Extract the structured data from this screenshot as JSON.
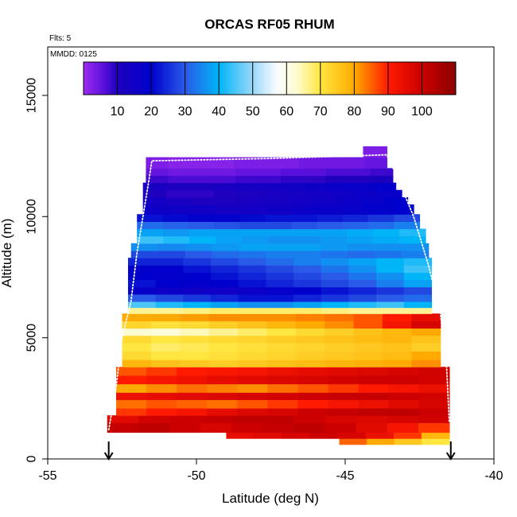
{
  "chart_data": {
    "type": "heatmap",
    "title": "ORCAS RF05 RHUM",
    "annotations": {
      "flights": "Flts: 5",
      "date": "MMDD: 0125"
    },
    "xlabel": "Latitude (deg N)",
    "ylabel": "Altitude (m)",
    "xlim": [
      -55,
      -40
    ],
    "ylim": [
      0,
      17000
    ],
    "xticks": [
      -55,
      -50,
      -45,
      -40
    ],
    "yticks": [
      0,
      5000,
      10000,
      15000
    ],
    "colorbar": {
      "range": [
        0,
        110
      ],
      "ticks": [
        10,
        20,
        30,
        40,
        50,
        60,
        70,
        80,
        90,
        100
      ],
      "colors": [
        {
          "v": 0,
          "c": "#9d2cf0"
        },
        {
          "v": 6,
          "c": "#5a10dc"
        },
        {
          "v": 10,
          "c": "#1f00be"
        },
        {
          "v": 20,
          "c": "#0000cc"
        },
        {
          "v": 30,
          "c": "#2a5ae8"
        },
        {
          "v": 40,
          "c": "#00b4f8"
        },
        {
          "v": 50,
          "c": "#99d8f8"
        },
        {
          "v": 57,
          "c": "#f8fcff"
        },
        {
          "v": 63,
          "c": "#fffbd0"
        },
        {
          "v": 70,
          "c": "#ffe640"
        },
        {
          "v": 80,
          "c": "#ffaa00"
        },
        {
          "v": 90,
          "c": "#ff1a00"
        },
        {
          "v": 100,
          "c": "#cc0000"
        },
        {
          "v": 110,
          "c": "#8b0000"
        }
      ]
    },
    "rows": [
      {
        "alt0": 600,
        "alt1": 900,
        "lat0": -45.2,
        "lat1": -41.5,
        "rh": [
          85,
          80,
          75,
          70
        ]
      },
      {
        "alt0": 850,
        "alt1": 1150,
        "lat0": -49,
        "lat1": -41.5,
        "rh": [
          95,
          96,
          98,
          100,
          98,
          94,
          88,
          78
        ]
      },
      {
        "alt0": 1100,
        "alt1": 1500,
        "lat0": -53,
        "lat1": -41.5,
        "rh": [
          101,
          102,
          100,
          98,
          100,
          101,
          102,
          100,
          96,
          92,
          88
        ]
      },
      {
        "alt0": 1500,
        "alt1": 1800,
        "lat0": -53,
        "lat1": -41.5,
        "rh": [
          96,
          99,
          100,
          101,
          102,
          102,
          100,
          98,
          97,
          98,
          99
        ]
      },
      {
        "alt0": 1800,
        "alt1": 2100,
        "lat0": -52.7,
        "lat1": -41.5,
        "rh": [
          88,
          90,
          92,
          95,
          97,
          98,
          100,
          101,
          102,
          102,
          100
        ]
      },
      {
        "alt0": 2100,
        "alt1": 2450,
        "lat0": -52.7,
        "lat1": -41.5,
        "rh": [
          84,
          86,
          85,
          84,
          86,
          88,
          90,
          92,
          94,
          96,
          98
        ]
      },
      {
        "alt0": 2450,
        "alt1": 2750,
        "lat0": -52.7,
        "lat1": -41.5,
        "rh": [
          94,
          95,
          96,
          97,
          98,
          99,
          100,
          101,
          101,
          100,
          99
        ]
      },
      {
        "alt0": 2750,
        "alt1": 3100,
        "lat0": -52.7,
        "lat1": -41.5,
        "rh": [
          80,
          82,
          84,
          83,
          82,
          84,
          86,
          88,
          90,
          92,
          94
        ]
      },
      {
        "alt0": 3100,
        "alt1": 3450,
        "lat0": -52.7,
        "lat1": -41.5,
        "rh": [
          90,
          92,
          93,
          95,
          96,
          97,
          98,
          99,
          100,
          100,
          99
        ]
      },
      {
        "alt0": 3450,
        "alt1": 3800,
        "lat0": -52.7,
        "lat1": -41.5,
        "rh": [
          86,
          88,
          90,
          91,
          92,
          94,
          95,
          96,
          97,
          98,
          99
        ]
      },
      {
        "alt0": 3800,
        "alt1": 4100,
        "lat0": -52.5,
        "lat1": -41.8,
        "rh": [
          78,
          76,
          75,
          74,
          75,
          76,
          77,
          78,
          79,
          80,
          82
        ]
      },
      {
        "alt0": 4100,
        "alt1": 4450,
        "lat0": -52.5,
        "lat1": -41.8,
        "rh": [
          72,
          70,
          70,
          71,
          72,
          73,
          74,
          75,
          76,
          77,
          80
        ]
      },
      {
        "alt0": 4450,
        "alt1": 4800,
        "lat0": -52.5,
        "lat1": -41.8,
        "rh": [
          70,
          68,
          69,
          70,
          71,
          72,
          73,
          74,
          75,
          76,
          74
        ]
      },
      {
        "alt0": 4800,
        "alt1": 5100,
        "lat0": -52.5,
        "lat1": -41.8,
        "rh": [
          72,
          70,
          71,
          72,
          73,
          74,
          75,
          76,
          77,
          78,
          76
        ]
      },
      {
        "alt0": 5100,
        "alt1": 5400,
        "lat0": -52.5,
        "lat1": -41.8,
        "rh": [
          63,
          62,
          64,
          66,
          68,
          70,
          72,
          74,
          76,
          78,
          80
        ]
      },
      {
        "alt0": 5400,
        "alt1": 5700,
        "lat0": -52.5,
        "lat1": -41.8,
        "rh": [
          73,
          71,
          72,
          74,
          76,
          78,
          80,
          82,
          86,
          92,
          98
        ]
      },
      {
        "alt0": 5700,
        "alt1": 6000,
        "lat0": -52.5,
        "lat1": -41.8,
        "rh": [
          80,
          80,
          81,
          82,
          82,
          82,
          83,
          84,
          86,
          90,
          95
        ]
      },
      {
        "alt0": 6000,
        "alt1": 6250,
        "lat0": -52.3,
        "lat1": -42.1,
        "rh": [
          66,
          66,
          67,
          68,
          68,
          68,
          68,
          67,
          66,
          66,
          66
        ]
      },
      {
        "alt0": 6250,
        "alt1": 6500,
        "lat0": -52.3,
        "lat1": -42.1,
        "rh": [
          45,
          42,
          40,
          38,
          36,
          36,
          38,
          40,
          42,
          44,
          40
        ]
      },
      {
        "alt0": 6500,
        "alt1": 6800,
        "lat0": -52.3,
        "lat1": -42.1,
        "rh": [
          30,
          28,
          26,
          24,
          22,
          22,
          24,
          26,
          28,
          30,
          32
        ]
      },
      {
        "alt0": 6800,
        "alt1": 7100,
        "lat0": -52.3,
        "lat1": -42.1,
        "rh": [
          18,
          16,
          15,
          15,
          16,
          18,
          20,
          22,
          24,
          26,
          28
        ]
      },
      {
        "alt0": 7100,
        "alt1": 7400,
        "lat0": -52.3,
        "lat1": -42.1,
        "rh": [
          22,
          20,
          19,
          20,
          22,
          24,
          26,
          28,
          30,
          34,
          38
        ]
      },
      {
        "alt0": 7400,
        "alt1": 7700,
        "lat0": -52.3,
        "lat1": -42.1,
        "rh": [
          20,
          19,
          20,
          22,
          24,
          26,
          28,
          30,
          33,
          36,
          40
        ]
      },
      {
        "alt0": 7700,
        "alt1": 8000,
        "lat0": -52.3,
        "lat1": -42.1,
        "rh": [
          19,
          20,
          22,
          24,
          26,
          28,
          30,
          33,
          36,
          40,
          44
        ]
      },
      {
        "alt0": 8000,
        "alt1": 8300,
        "lat0": -52.3,
        "lat1": -42.1,
        "rh": [
          24,
          24,
          26,
          28,
          30,
          32,
          34,
          36,
          38,
          40,
          42
        ]
      },
      {
        "alt0": 8300,
        "alt1": 8600,
        "lat0": -52.2,
        "lat1": -42.2,
        "rh": [
          28,
          28,
          30,
          32,
          33,
          34,
          34,
          33,
          32,
          33,
          34
        ]
      },
      {
        "alt0": 8600,
        "alt1": 8900,
        "lat0": -52.2,
        "lat1": -42.2,
        "rh": [
          36,
          35,
          36,
          37,
          38,
          38,
          38,
          37,
          36,
          36,
          36
        ]
      },
      {
        "alt0": 8900,
        "alt1": 9200,
        "lat0": -52.0,
        "lat1": -42.3,
        "rh": [
          44,
          42,
          40,
          38,
          37,
          36,
          36,
          37,
          38,
          39,
          40
        ]
      },
      {
        "alt0": 9200,
        "alt1": 9500,
        "lat0": -52.0,
        "lat1": -42.3,
        "rh": [
          38,
          37,
          38,
          38,
          38,
          38,
          38,
          38,
          39,
          40,
          42
        ]
      },
      {
        "alt0": 9500,
        "alt1": 9800,
        "lat0": -52.0,
        "lat1": -42.5,
        "rh": [
          32,
          31,
          30,
          29,
          28,
          28,
          29,
          30,
          31,
          32,
          34
        ]
      },
      {
        "alt0": 9800,
        "alt1": 10100,
        "lat0": -52.0,
        "lat1": -42.5,
        "rh": [
          22,
          21,
          20,
          20,
          21,
          22,
          22,
          23,
          24,
          26,
          28
        ]
      },
      {
        "alt0": 10100,
        "alt1": 10500,
        "lat0": -51.8,
        "lat1": -42.7,
        "rh": [
          16,
          15,
          15,
          14,
          14,
          15,
          16,
          17,
          18,
          19,
          20
        ]
      },
      {
        "alt0": 10500,
        "alt1": 10800,
        "lat0": -51.8,
        "lat1": -42.9,
        "rh": [
          14,
          12,
          11,
          11,
          12,
          13,
          14,
          15,
          16,
          18,
          20
        ]
      },
      {
        "alt0": 10800,
        "alt1": 11100,
        "lat0": -51.8,
        "lat1": -43.1,
        "rh": [
          10,
          9,
          9,
          10,
          11,
          12,
          13,
          14,
          15,
          16,
          18
        ]
      },
      {
        "alt0": 11100,
        "alt1": 11400,
        "lat0": -51.8,
        "lat1": -43.3,
        "rh": [
          12,
          11,
          11,
          12,
          13,
          14,
          15,
          16,
          17,
          18,
          19
        ]
      },
      {
        "alt0": 11400,
        "alt1": 11700,
        "lat0": -51.7,
        "lat1": -43.4,
        "rh": [
          8,
          7,
          7,
          7,
          8,
          8,
          9,
          9,
          10,
          10,
          11
        ]
      },
      {
        "alt0": 11700,
        "alt1": 12000,
        "lat0": -51.7,
        "lat1": -43.4,
        "rh": [
          5,
          4,
          4,
          4,
          5,
          5,
          6,
          6,
          7,
          7,
          8
        ]
      },
      {
        "alt0": 12000,
        "alt1": 12450,
        "lat0": -51.7,
        "lat1": -43.6,
        "rh": [
          3,
          2,
          2,
          2,
          3,
          3,
          3,
          4,
          4,
          4,
          5
        ]
      },
      {
        "alt0": 12450,
        "alt1": 12900,
        "lat0": -44.4,
        "lat1": -43.6,
        "rh": [
          3,
          3
        ]
      }
    ],
    "flight_track": [
      [
        -52.95,
        1200
      ],
      [
        -52.7,
        3000
      ],
      [
        -52.5,
        5000
      ],
      [
        -52.2,
        6500
      ],
      [
        -52.0,
        8500
      ],
      [
        -51.8,
        10000
      ],
      [
        -51.6,
        11500
      ],
      [
        -51.5,
        12300
      ],
      [
        -47.5,
        12400
      ],
      [
        -43.6,
        12550
      ],
      [
        -43.2,
        11500
      ],
      [
        -42.7,
        10000
      ],
      [
        -42.2,
        8000
      ],
      [
        -41.8,
        6000
      ],
      [
        -41.6,
        4000
      ],
      [
        -41.5,
        1500
      ]
    ],
    "markers": [
      {
        "lat": -52.95,
        "symbol": "arrow-down"
      },
      {
        "lat": -41.45,
        "symbol": "arrow-down"
      }
    ]
  }
}
